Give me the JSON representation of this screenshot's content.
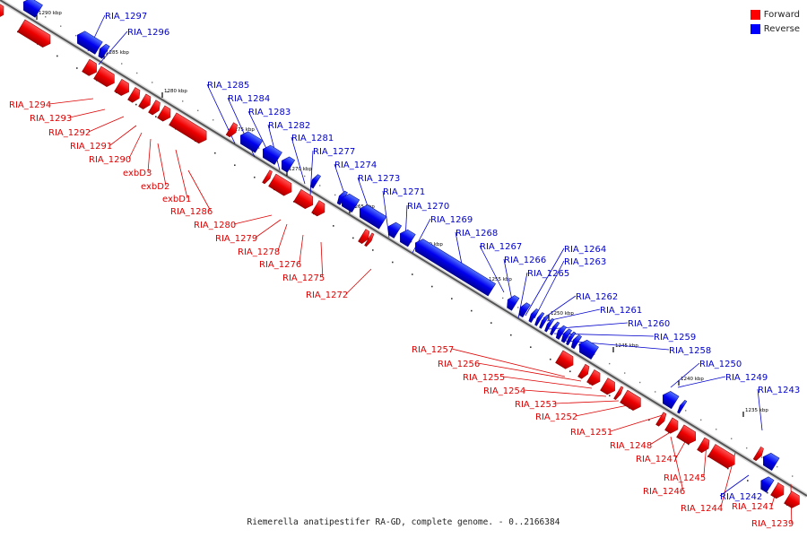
{
  "legend": {
    "forward_label": "Forward",
    "reverse_label": "Reverse",
    "forward_color": "#ff0000",
    "reverse_color": "#0000ff"
  },
  "caption": "Riemerella anatipestifer RA-GD, complete genome. - 0..2166384",
  "ticks": [
    "1290 kbp",
    "1285 kbp",
    "1280 kbp",
    "1275 kbp",
    "1270 kbp",
    "1265 kbp",
    "1260 kbp",
    "1255 kbp",
    "1250 kbp",
    "1245 kbp",
    "1240 kbp",
    "1235 kbp"
  ],
  "genes": [
    {
      "name": "",
      "strand": "reverse"
    },
    {
      "name": "",
      "strand": "forward"
    },
    {
      "name": "RIA_1297",
      "strand": "reverse"
    },
    {
      "name": "RIA_1296",
      "strand": "reverse"
    },
    {
      "name": "",
      "strand": "forward"
    },
    {
      "name": "RIA_1294",
      "strand": "forward"
    },
    {
      "name": "RIA_1293",
      "strand": "forward"
    },
    {
      "name": "RIA_1292",
      "strand": "forward"
    },
    {
      "name": "RIA_1291",
      "strand": "forward"
    },
    {
      "name": "RIA_1290",
      "strand": "forward"
    },
    {
      "name": "exbD3",
      "strand": "forward"
    },
    {
      "name": "exbD2",
      "strand": "forward"
    },
    {
      "name": "exbD1",
      "strand": "forward"
    },
    {
      "name": "RIA_1286",
      "strand": "forward"
    },
    {
      "name": "RIA_1285",
      "strand": "reverse"
    },
    {
      "name": "RIA_1284",
      "strand": "reverse"
    },
    {
      "name": "RIA_1283",
      "strand": "reverse"
    },
    {
      "name": "RIA_1282",
      "strand": "reverse"
    },
    {
      "name": "RIA_1281",
      "strand": "reverse"
    },
    {
      "name": "RIA_1280",
      "strand": "forward"
    },
    {
      "name": "RIA_1279",
      "strand": "forward"
    },
    {
      "name": "RIA_1278",
      "strand": "forward"
    },
    {
      "name": "RIA_1277",
      "strand": "reverse"
    },
    {
      "name": "RIA_1276",
      "strand": "forward"
    },
    {
      "name": "RIA_1275",
      "strand": "forward"
    },
    {
      "name": "RIA_1274",
      "strand": "reverse"
    },
    {
      "name": "RIA_1273",
      "strand": "reverse"
    },
    {
      "name": "RIA_1272",
      "strand": "forward"
    },
    {
      "name": "RIA_1271",
      "strand": "reverse"
    },
    {
      "name": "RIA_1270",
      "strand": "reverse"
    },
    {
      "name": "RIA_1269",
      "strand": "reverse"
    },
    {
      "name": "RIA_1268",
      "strand": "reverse"
    },
    {
      "name": "RIA_1267",
      "strand": "reverse"
    },
    {
      "name": "RIA_1266",
      "strand": "reverse"
    },
    {
      "name": "RIA_1265",
      "strand": "reverse"
    },
    {
      "name": "RIA_1264",
      "strand": "reverse"
    },
    {
      "name": "RIA_1263",
      "strand": "reverse"
    },
    {
      "name": "RIA_1262",
      "strand": "reverse"
    },
    {
      "name": "RIA_1261",
      "strand": "reverse"
    },
    {
      "name": "RIA_1260",
      "strand": "reverse"
    },
    {
      "name": "RIA_1259",
      "strand": "reverse"
    },
    {
      "name": "RIA_1258",
      "strand": "reverse"
    },
    {
      "name": "RIA_1257",
      "strand": "forward"
    },
    {
      "name": "RIA_1256",
      "strand": "forward"
    },
    {
      "name": "RIA_1255",
      "strand": "forward"
    },
    {
      "name": "RIA_1254",
      "strand": "forward"
    },
    {
      "name": "RIA_1253",
      "strand": "forward"
    },
    {
      "name": "RIA_1252",
      "strand": "forward"
    },
    {
      "name": "RIA_1251",
      "strand": "forward"
    },
    {
      "name": "RIA_1250",
      "strand": "reverse"
    },
    {
      "name": "RIA_1249",
      "strand": "reverse"
    },
    {
      "name": "RIA_1248",
      "strand": "forward"
    },
    {
      "name": "RIA_1247",
      "strand": "forward"
    },
    {
      "name": "RIA_1246",
      "strand": "forward"
    },
    {
      "name": "RIA_1245",
      "strand": "forward"
    },
    {
      "name": "RIA_1244",
      "strand": "forward"
    },
    {
      "name": "RIA_1243",
      "strand": "reverse"
    },
    {
      "name": "RIA_1242",
      "strand": "reverse"
    },
    {
      "name": "RIA_1241",
      "strand": "forward"
    },
    {
      "name": "RIA_1239",
      "strand": "forward"
    }
  ]
}
